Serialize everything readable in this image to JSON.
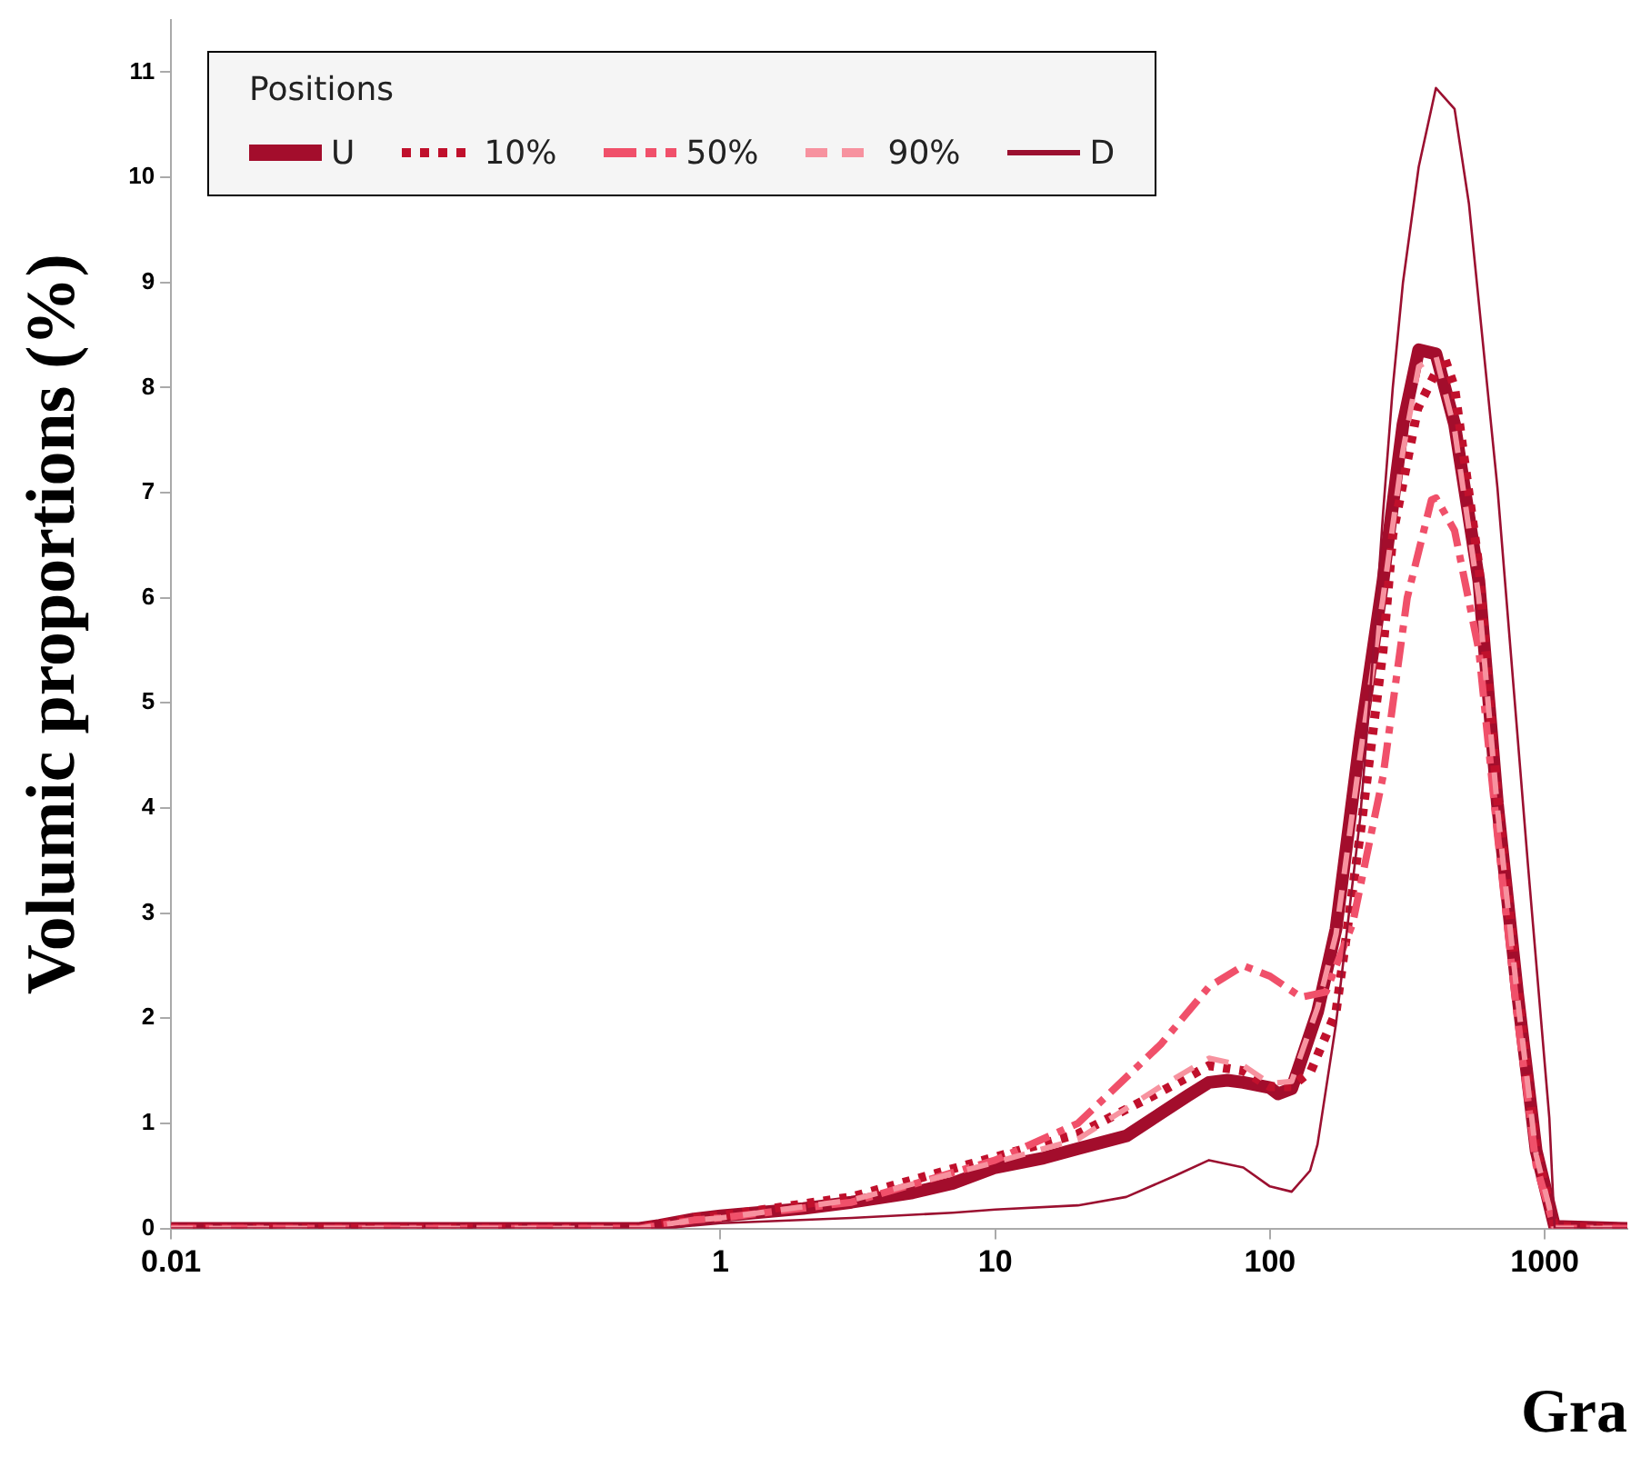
{
  "chart_data": {
    "type": "line",
    "ylabel": "Volumic proportions (%)",
    "xlabel": "Gra",
    "legend_title": "Positions",
    "legend": "top left",
    "log": "x",
    "grid": false,
    "marker": "none",
    "xlim": [
      0.01,
      2000
    ],
    "xticks": [
      0.01,
      1,
      10,
      100,
      1000
    ],
    "ylim": [
      0,
      11.5
    ],
    "yticks": [
      0,
      1,
      2,
      3,
      4,
      5,
      6,
      7,
      8,
      9,
      10,
      11
    ],
    "series": [
      {
        "name": "U",
        "color": "#a30d2c",
        "line_style": "solid",
        "x": [
          0.01,
          0.5,
          0.6,
          0.8,
          1,
          2,
          3,
          5,
          7,
          10,
          15,
          20,
          30,
          50,
          60,
          70,
          80,
          100,
          107,
          120,
          149,
          174,
          213,
          258,
          305,
          348,
          402,
          470,
          576,
          673,
          796,
          931,
          1087,
          2000
        ],
        "values": [
          0,
          0,
          0.03,
          0.09,
          0.12,
          0.19,
          0.25,
          0.34,
          0.43,
          0.58,
          0.67,
          0.76,
          0.88,
          1.26,
          1.39,
          1.41,
          1.39,
          1.34,
          1.28,
          1.33,
          2.06,
          2.85,
          4.66,
          6.16,
          7.65,
          8.36,
          8.32,
          7.65,
          6.16,
          4.04,
          2.24,
          0.74,
          0.02,
          0
        ]
      },
      {
        "name": "10%",
        "color": "#c0102c",
        "line_style": "dotted",
        "x": [
          0.01,
          0.5,
          0.6,
          0.8,
          1,
          3,
          10,
          20,
          40,
          60,
          80,
          100,
          120,
          141,
          174,
          213,
          258,
          280,
          345,
          430,
          470,
          576,
          673,
          796,
          931,
          1087,
          2000
        ],
        "values": [
          0,
          0,
          0.04,
          0.1,
          0.12,
          0.3,
          0.68,
          0.9,
          1.3,
          1.55,
          1.5,
          1.35,
          1.35,
          1.5,
          2.06,
          3.75,
          5.5,
          6.6,
          7.8,
          8.3,
          8.0,
          6.3,
          4.1,
          2.3,
          0.75,
          0.02,
          0
        ]
      },
      {
        "name": "50%",
        "color": "#f0506a",
        "line_style": "dashdot",
        "x": [
          0.01,
          0.5,
          0.6,
          0.8,
          1,
          3,
          10,
          20,
          40,
          60,
          80,
          100,
          130,
          160,
          200,
          258,
          316,
          387,
          402,
          470,
          576,
          673,
          796,
          931,
          1087,
          2000
        ],
        "values": [
          0,
          0,
          0.03,
          0.08,
          0.1,
          0.25,
          0.65,
          1.0,
          1.75,
          2.3,
          2.5,
          2.4,
          2.2,
          2.25,
          2.9,
          4.3,
          6.0,
          6.93,
          6.95,
          6.64,
          5.5,
          3.75,
          2.0,
          0.6,
          0,
          0
        ]
      },
      {
        "name": "90%",
        "color": "#f7929f",
        "line_style": "dashed",
        "x": [
          0.01,
          0.5,
          0.6,
          0.8,
          1,
          3,
          10,
          20,
          40,
          60,
          80,
          100,
          120,
          149,
          174,
          213,
          258,
          305,
          348,
          402,
          470,
          576,
          673,
          796,
          931,
          1087,
          2000
        ],
        "values": [
          0,
          0,
          0.03,
          0.08,
          0.1,
          0.27,
          0.63,
          0.85,
          1.35,
          1.62,
          1.55,
          1.38,
          1.4,
          2.1,
          2.8,
          4.5,
          6.0,
          7.4,
          8.2,
          8.3,
          7.6,
          6.0,
          4.0,
          2.2,
          0.7,
          0,
          0
        ]
      },
      {
        "name": "D",
        "color": "#9b1030",
        "line_style": "solid",
        "x": [
          0.01,
          0.6,
          1,
          3,
          7,
          10,
          20,
          30,
          45,
          60,
          80,
          100,
          120,
          140,
          149,
          174,
          213,
          243,
          258,
          280,
          305,
          348,
          402,
          470,
          530,
          673,
          870,
          1040,
          1087,
          2000
        ],
        "values": [
          0,
          0,
          0.05,
          0.1,
          0.15,
          0.18,
          0.22,
          0.3,
          0.5,
          0.65,
          0.58,
          0.4,
          0.35,
          0.55,
          0.8,
          1.95,
          3.9,
          5.8,
          6.8,
          8.0,
          9.0,
          10.1,
          10.85,
          10.65,
          9.75,
          7.05,
          3.45,
          1.05,
          0,
          0
        ]
      }
    ]
  }
}
